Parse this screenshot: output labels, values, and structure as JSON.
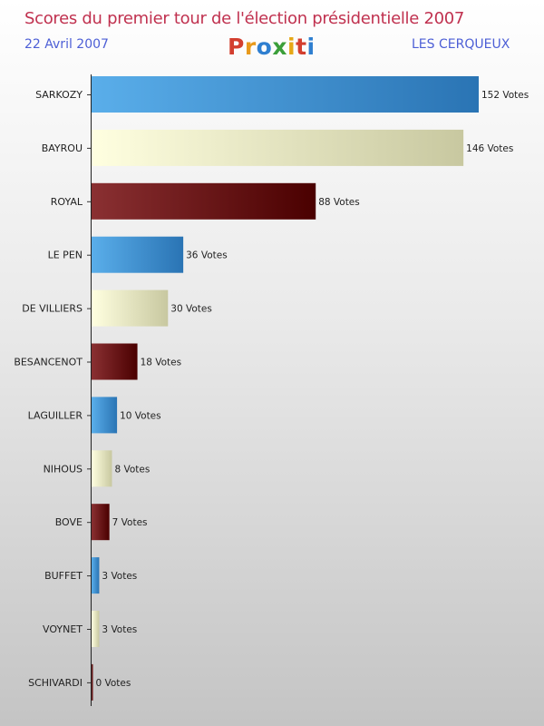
{
  "header": {
    "title": "Scores du premier tour de l'élection présidentielle 2007",
    "date": "22 Avril 2007",
    "commune": "LES CERQUEUX",
    "logo_text": "Proxiti",
    "logo_colors": [
      "#d33f2f",
      "#e89a1c",
      "#2f7fd0",
      "#3b9f3a",
      "#e6a817",
      "#d33f2f",
      "#2f7fd0"
    ]
  },
  "chart_data": {
    "type": "bar",
    "orientation": "horizontal",
    "title": "Scores du premier tour de l'élection présidentielle 2007",
    "categories": [
      "SARKOZY",
      "BAYROU",
      "ROYAL",
      "LE PEN",
      "DE VILLIERS",
      "BESANCENOT",
      "LAGUILLER",
      "NIHOUS",
      "BOVE",
      "BUFFET",
      "VOYNET",
      "SCHIVARDI"
    ],
    "values": [
      152,
      146,
      88,
      36,
      30,
      18,
      10,
      8,
      7,
      3,
      3,
      0
    ],
    "value_labels": [
      "152 Votes",
      "146 Votes",
      "88 Votes",
      "36 Votes",
      "30 Votes",
      "18 Votes",
      "10 Votes",
      "8 Votes",
      "7 Votes",
      "3 Votes",
      "3 Votes",
      "0 Votes"
    ],
    "xlim": [
      0,
      152
    ],
    "grid": false,
    "bar_color_cycle": [
      "blue",
      "cream",
      "maroon"
    ],
    "colors": {
      "blue": [
        "#5aaeea",
        "#2a74b4"
      ],
      "cream": [
        "#ffffe0",
        "#c8c8a0"
      ],
      "maroon": [
        "#8a3032",
        "#4a0000"
      ]
    }
  }
}
